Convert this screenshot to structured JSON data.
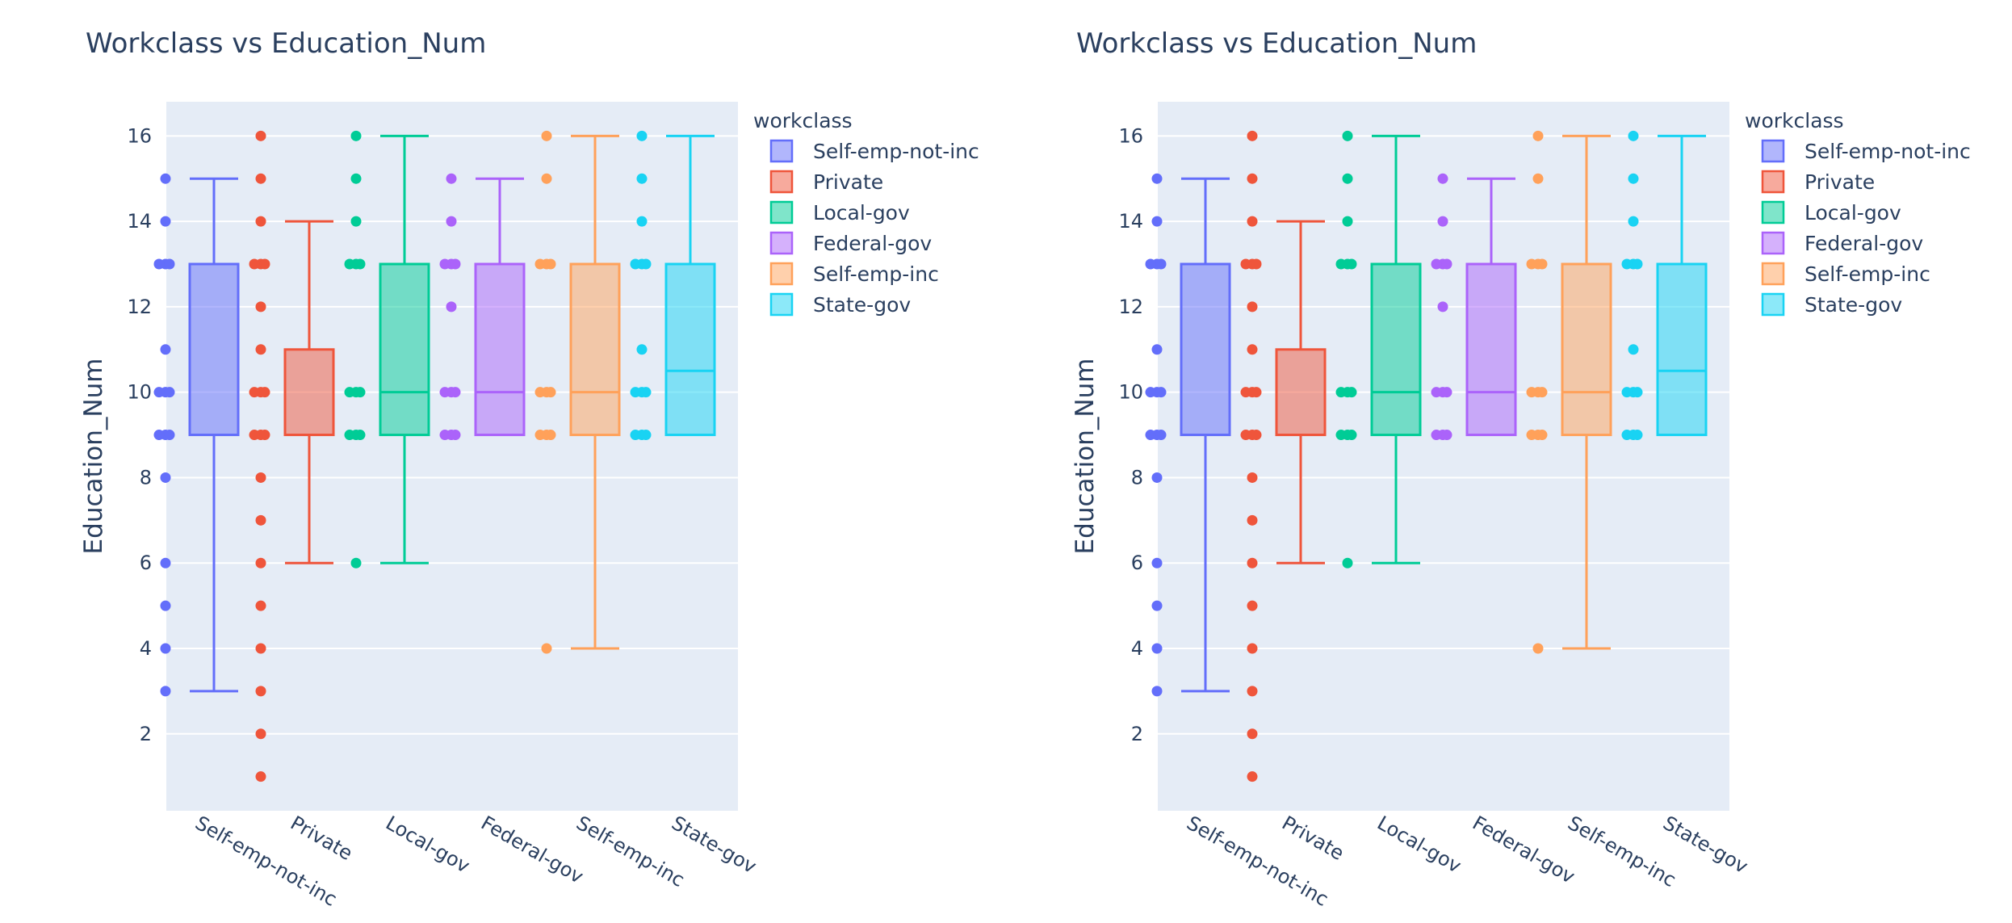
{
  "chart_data": [
    {
      "type": "box",
      "title": "Workclass vs Education_Num",
      "xlabel": "",
      "ylabel": "Education_Num",
      "yticks": [
        2,
        4,
        6,
        8,
        10,
        12,
        14,
        16
      ],
      "ylim": [
        0.2,
        16.8
      ],
      "legend": {
        "title": "workclass",
        "placement": "right"
      },
      "series": [
        {
          "name": "Self-emp-not-inc",
          "color": "#636efa",
          "q1": 9,
          "median": 9,
          "q3": 13,
          "lower_whisker": 3,
          "upper_whisker": 15,
          "outliers": [
            3,
            4,
            5,
            6,
            8,
            9,
            10,
            11,
            13,
            14,
            15
          ]
        },
        {
          "name": "Private",
          "color": "#ef553b",
          "q1": 9,
          "median": 9,
          "q3": 11,
          "lower_whisker": 6,
          "upper_whisker": 14,
          "outliers": [
            1,
            2,
            3,
            4,
            5,
            6,
            7,
            8,
            9,
            10,
            11,
            12,
            13,
            14,
            15,
            16
          ]
        },
        {
          "name": "Local-gov",
          "color": "#00cc96",
          "q1": 9,
          "median": 10,
          "q3": 13,
          "lower_whisker": 6,
          "upper_whisker": 16,
          "outliers": [
            6,
            9,
            10,
            13,
            14,
            15,
            16
          ]
        },
        {
          "name": "Federal-gov",
          "color": "#ab63fa",
          "q1": 9,
          "median": 10,
          "q3": 13,
          "lower_whisker": 9,
          "upper_whisker": 15,
          "outliers": [
            9,
            10,
            12,
            13,
            14,
            15
          ]
        },
        {
          "name": "Self-emp-inc",
          "color": "#ffa15a",
          "q1": 9,
          "median": 10,
          "q3": 13,
          "lower_whisker": 4,
          "upper_whisker": 16,
          "outliers": [
            4,
            9,
            10,
            13,
            15,
            16
          ]
        },
        {
          "name": "State-gov",
          "color": "#19d3f3",
          "q1": 9,
          "median": 10.5,
          "q3": 13,
          "lower_whisker": 9,
          "upper_whisker": 16,
          "outliers": [
            9,
            10,
            11,
            13,
            14,
            15,
            16
          ]
        }
      ]
    },
    {
      "type": "box",
      "title": "Workclass vs Education_Num",
      "xlabel": "",
      "ylabel": "Education_Num",
      "yticks": [
        2,
        4,
        6,
        8,
        10,
        12,
        14,
        16
      ],
      "ylim": [
        0.2,
        16.8
      ],
      "legend": {
        "title": "workclass",
        "placement": "right"
      },
      "series": [
        {
          "name": "Self-emp-not-inc",
          "color": "#636efa",
          "q1": 9,
          "median": 9,
          "q3": 13,
          "lower_whisker": 3,
          "upper_whisker": 15,
          "outliers": [
            3,
            4,
            5,
            6,
            8,
            9,
            10,
            11,
            13,
            14,
            15
          ]
        },
        {
          "name": "Private",
          "color": "#ef553b",
          "q1": 9,
          "median": 9,
          "q3": 11,
          "lower_whisker": 6,
          "upper_whisker": 14,
          "outliers": [
            1,
            2,
            3,
            4,
            5,
            6,
            7,
            8,
            9,
            10,
            11,
            12,
            13,
            14,
            15,
            16
          ]
        },
        {
          "name": "Local-gov",
          "color": "#00cc96",
          "q1": 9,
          "median": 10,
          "q3": 13,
          "lower_whisker": 6,
          "upper_whisker": 16,
          "outliers": [
            6,
            9,
            10,
            13,
            14,
            15,
            16
          ]
        },
        {
          "name": "Federal-gov",
          "color": "#ab63fa",
          "q1": 9,
          "median": 10,
          "q3": 13,
          "lower_whisker": 9,
          "upper_whisker": 15,
          "outliers": [
            9,
            10,
            12,
            13,
            14,
            15
          ]
        },
        {
          "name": "Self-emp-inc",
          "color": "#ffa15a",
          "q1": 9,
          "median": 10,
          "q3": 13,
          "lower_whisker": 4,
          "upper_whisker": 16,
          "outliers": [
            4,
            9,
            10,
            13,
            15,
            16
          ]
        },
        {
          "name": "State-gov",
          "color": "#19d3f3",
          "q1": 9,
          "median": 10.5,
          "q3": 13,
          "lower_whisker": 9,
          "upper_whisker": 16,
          "outliers": [
            9,
            10,
            11,
            13,
            14,
            15,
            16
          ]
        }
      ]
    }
  ]
}
